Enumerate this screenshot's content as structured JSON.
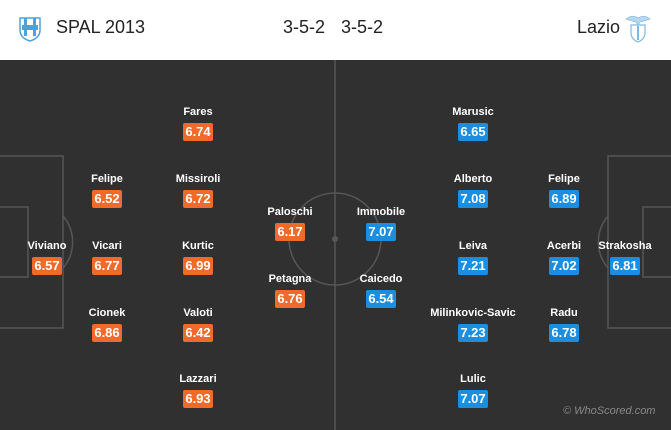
{
  "header": {
    "home_team": "SPAL 2013",
    "home_formation": "3-5-2",
    "away_formation": "3-5-2",
    "away_team": "Lazio",
    "home_logo_icon": "spal-crest-icon",
    "away_logo_icon": "lazio-eagle-crest-icon"
  },
  "colors": {
    "pitch": "#303030",
    "pitch_lines": "#555555",
    "home_rating": "#ef6a2b",
    "away_rating": "#1c8ee0"
  },
  "home_players": [
    {
      "name": "Fares",
      "rating": "6.74"
    },
    {
      "name": "Felipe",
      "rating": "6.52"
    },
    {
      "name": "Missiroli",
      "rating": "6.72"
    },
    {
      "name": "Paloschi",
      "rating": "6.17"
    },
    {
      "name": "Viviano",
      "rating": "6.57"
    },
    {
      "name": "Vicari",
      "rating": "6.77"
    },
    {
      "name": "Kurtic",
      "rating": "6.99"
    },
    {
      "name": "Petagna",
      "rating": "6.76"
    },
    {
      "name": "Cionek",
      "rating": "6.86"
    },
    {
      "name": "Valoti",
      "rating": "6.42"
    },
    {
      "name": "Lazzari",
      "rating": "6.93"
    }
  ],
  "away_players": [
    {
      "name": "Marusic",
      "rating": "6.65"
    },
    {
      "name": "Alberto",
      "rating": "7.08"
    },
    {
      "name": "Felipe",
      "rating": "6.89"
    },
    {
      "name": "Immobile",
      "rating": "7.07"
    },
    {
      "name": "Leiva",
      "rating": "7.21"
    },
    {
      "name": "Acerbi",
      "rating": "7.02"
    },
    {
      "name": "Strakosha",
      "rating": "6.81"
    },
    {
      "name": "Caicedo",
      "rating": "6.54"
    },
    {
      "name": "Milinkovic-Savic",
      "rating": "7.23"
    },
    {
      "name": "Radu",
      "rating": "6.78"
    },
    {
      "name": "Lulic",
      "rating": "7.07"
    }
  ],
  "watermark": "© WhoScored.com"
}
